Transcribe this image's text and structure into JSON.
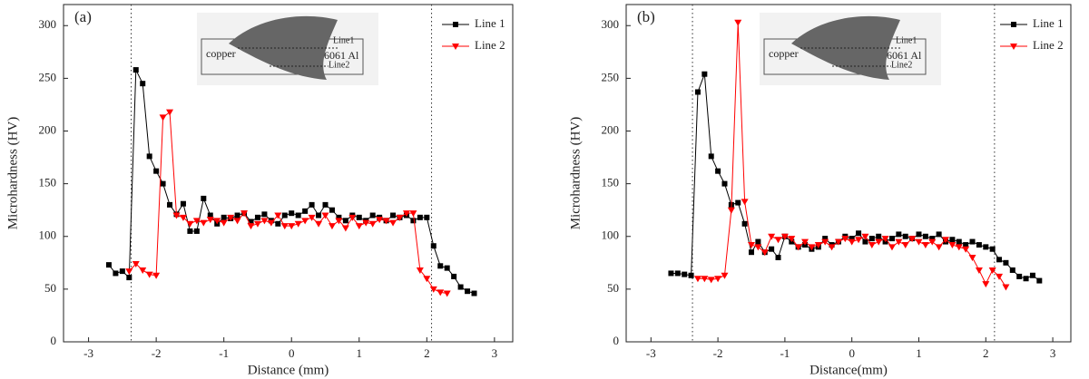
{
  "chart_data": [
    {
      "type": "line",
      "panel_label": "(a)",
      "xlabel": "Distance (mm)",
      "ylabel": "Microhardness (HV)",
      "xlim": [
        -3.37,
        3.27
      ],
      "ylim": [
        0,
        320
      ],
      "xticks": [
        -3,
        -2,
        -1,
        0,
        1,
        2,
        3
      ],
      "yticks": [
        0,
        50,
        100,
        150,
        200,
        250,
        300
      ],
      "vlines": [
        -2.37,
        2.07
      ],
      "legend": "upper right",
      "inset": {
        "left": "copper",
        "right": "6061 Al",
        "line1": "Line1",
        "line2": "Line2"
      },
      "series": [
        {
          "name": "Line 1",
          "color": "#000000",
          "marker": "square",
          "x": [
            -2.7,
            -2.6,
            -2.5,
            -2.4,
            -2.3,
            -2.2,
            -2.1,
            -2.0,
            -1.9,
            -1.8,
            -1.7,
            -1.6,
            -1.5,
            -1.4,
            -1.3,
            -1.2,
            -1.1,
            -1.0,
            -0.9,
            -0.8,
            -0.7,
            -0.6,
            -0.5,
            -0.4,
            -0.3,
            -0.2,
            -0.1,
            0,
            0.1,
            0.2,
            0.3,
            0.4,
            0.5,
            0.6,
            0.7,
            0.8,
            0.9,
            1.0,
            1.1,
            1.2,
            1.3,
            1.4,
            1.5,
            1.6,
            1.7,
            1.8,
            1.9,
            2.0,
            2.1,
            2.2,
            2.3,
            2.4,
            2.5,
            2.6,
            2.7
          ],
          "values": [
            73,
            65,
            67,
            61,
            258,
            245,
            176,
            162,
            150,
            130,
            121,
            131,
            105,
            105,
            136,
            120,
            112,
            118,
            117,
            120,
            122,
            114,
            118,
            121,
            115,
            112,
            120,
            122,
            120,
            124,
            130,
            120,
            130,
            125,
            118,
            115,
            120,
            118,
            115,
            120,
            118,
            115,
            120,
            118,
            120,
            115,
            118,
            118,
            91,
            72,
            70,
            62,
            52,
            48,
            46
          ]
        },
        {
          "name": "Line 2",
          "color": "#ff0000",
          "marker": "triangle-down",
          "x": [
            -2.4,
            -2.3,
            -2.2,
            -2.1,
            -2.0,
            -1.9,
            -1.8,
            -1.7,
            -1.6,
            -1.5,
            -1.4,
            -1.3,
            -1.2,
            -1.1,
            -1.0,
            -0.9,
            -0.8,
            -0.7,
            -0.6,
            -0.5,
            -0.4,
            -0.3,
            -0.2,
            -0.1,
            0,
            0.1,
            0.2,
            0.3,
            0.4,
            0.5,
            0.6,
            0.7,
            0.8,
            0.9,
            1.0,
            1.1,
            1.2,
            1.3,
            1.4,
            1.5,
            1.6,
            1.7,
            1.8,
            1.9,
            2.0,
            2.1,
            2.2,
            2.3
          ],
          "values": [
            67,
            74,
            68,
            64,
            63,
            213,
            218,
            120,
            118,
            112,
            115,
            113,
            116,
            115,
            113,
            118,
            115,
            122,
            110,
            112,
            115,
            113,
            120,
            110,
            110,
            112,
            115,
            118,
            112,
            120,
            110,
            115,
            108,
            118,
            110,
            113,
            112,
            116,
            115,
            113,
            118,
            122,
            122,
            68,
            60,
            50,
            47,
            46
          ]
        }
      ]
    },
    {
      "type": "line",
      "panel_label": "(b)",
      "xlabel": "Distance(mm)",
      "ylabel": "Microhardness (HV)",
      "xlim": [
        -3.37,
        3.27
      ],
      "ylim": [
        0,
        320
      ],
      "xticks": [
        -3,
        -2,
        -1,
        0,
        1,
        2,
        3
      ],
      "yticks": [
        0,
        50,
        100,
        150,
        200,
        250,
        300
      ],
      "vlines": [
        -2.38,
        2.13
      ],
      "legend": "upper right",
      "inset": {
        "left": "copper",
        "right": "6061 Al",
        "line1": "Line1",
        "line2": "Line2"
      },
      "series": [
        {
          "name": "Line 1",
          "color": "#000000",
          "marker": "square",
          "x": [
            -2.7,
            -2.6,
            -2.5,
            -2.4,
            -2.3,
            -2.2,
            -2.1,
            -2.0,
            -1.9,
            -1.8,
            -1.7,
            -1.6,
            -1.5,
            -1.4,
            -1.3,
            -1.2,
            -1.1,
            -1.0,
            -0.9,
            -0.8,
            -0.7,
            -0.6,
            -0.5,
            -0.4,
            -0.3,
            -0.2,
            -0.1,
            0,
            0.1,
            0.2,
            0.3,
            0.4,
            0.5,
            0.6,
            0.7,
            0.8,
            0.9,
            1.0,
            1.1,
            1.2,
            1.3,
            1.4,
            1.5,
            1.6,
            1.7,
            1.8,
            1.9,
            2.0,
            2.1,
            2.2,
            2.3,
            2.4,
            2.5,
            2.6,
            2.7,
            2.8
          ],
          "values": [
            65,
            65,
            64,
            63,
            237,
            254,
            176,
            162,
            150,
            130,
            132,
            112,
            85,
            95,
            85,
            88,
            80,
            100,
            95,
            90,
            92,
            88,
            90,
            98,
            92,
            95,
            100,
            98,
            103,
            95,
            98,
            100,
            95,
            98,
            102,
            100,
            98,
            102,
            100,
            98,
            102,
            95,
            97,
            95,
            92,
            95,
            92,
            90,
            88,
            78,
            75,
            68,
            62,
            60,
            63,
            58
          ]
        },
        {
          "name": "Line 2",
          "color": "#ff0000",
          "marker": "triangle-down",
          "x": [
            -2.3,
            -2.2,
            -2.1,
            -2.0,
            -1.9,
            -1.8,
            -1.7,
            -1.6,
            -1.5,
            -1.4,
            -1.3,
            -1.2,
            -1.1,
            -1.0,
            -0.9,
            -0.8,
            -0.7,
            -0.6,
            -0.5,
            -0.4,
            -0.3,
            -0.2,
            -0.1,
            0,
            0.1,
            0.2,
            0.3,
            0.4,
            0.5,
            0.6,
            0.7,
            0.8,
            0.9,
            1.0,
            1.1,
            1.2,
            1.3,
            1.4,
            1.5,
            1.6,
            1.7,
            1.8,
            1.9,
            2.0,
            2.1,
            2.2,
            2.3
          ],
          "values": [
            60,
            60,
            59,
            60,
            63,
            125,
            303,
            133,
            92,
            90,
            85,
            100,
            97,
            100,
            98,
            90,
            95,
            90,
            92,
            95,
            90,
            95,
            98,
            95,
            97,
            100,
            92,
            95,
            98,
            90,
            95,
            92,
            98,
            95,
            92,
            95,
            90,
            97,
            92,
            90,
            88,
            80,
            68,
            55,
            68,
            62,
            52
          ]
        }
      ]
    }
  ]
}
